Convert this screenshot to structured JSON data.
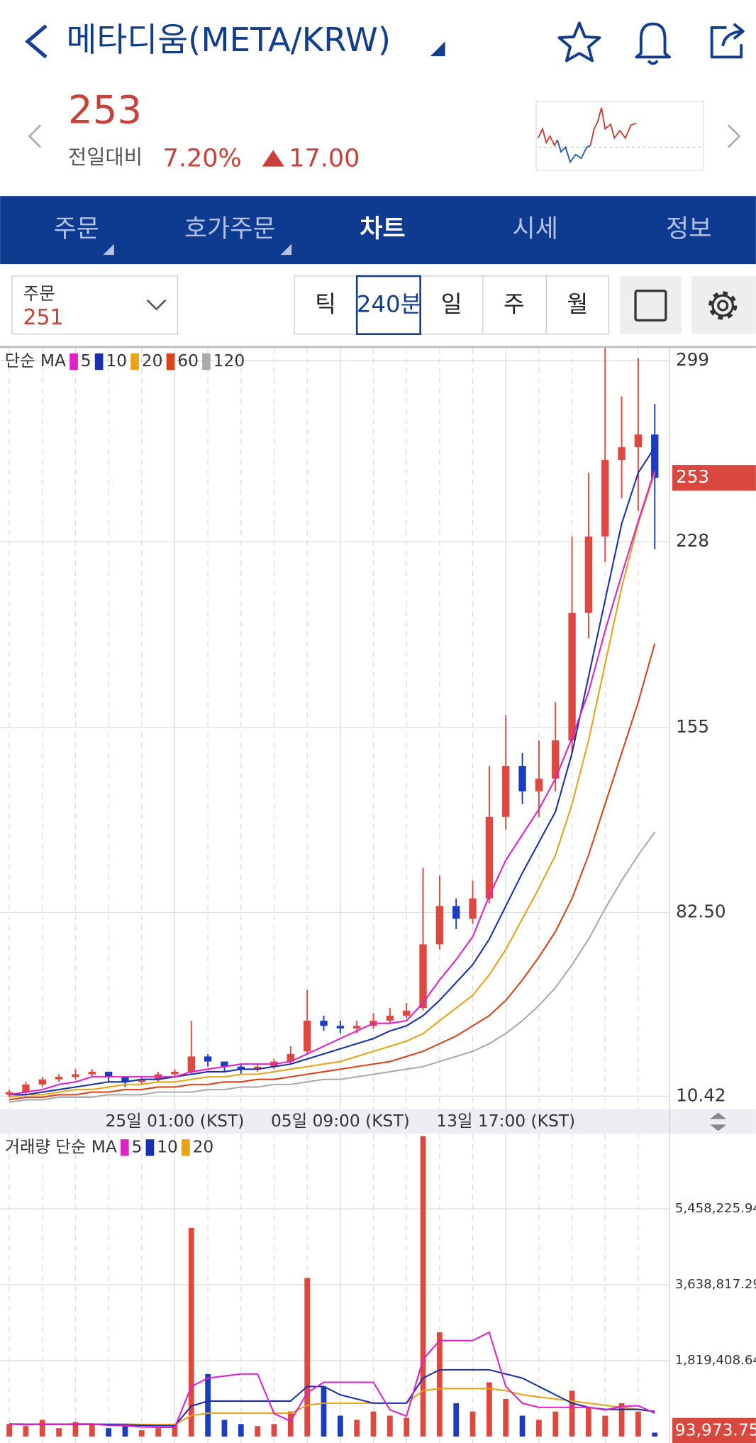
{
  "header": {
    "title": "메타디움(META/KRW)",
    "price": "253",
    "change_label": "전일대비",
    "change_rate": "7.20%",
    "change_amount": "17.00"
  },
  "tabs": [
    "주문",
    "호가주문",
    "차트",
    "시세",
    "정보"
  ],
  "toolbar": {
    "order_label": "주문",
    "order_value": "251",
    "periods": [
      "틱",
      "240분",
      "일",
      "주",
      "월"
    ]
  },
  "chart_data": [
    {
      "type": "candlestick",
      "legend_title": "단순 MA",
      "categories": [
        null,
        null,
        null,
        null,
        null,
        null,
        null,
        null,
        null,
        null,
        "25일 01:00 (KST)",
        null,
        null,
        null,
        null,
        null,
        null,
        null,
        null,
        null,
        "05일 09:00 (KST)",
        null,
        null,
        null,
        null,
        null,
        null,
        null,
        null,
        null,
        "13일 17:00 (KST)",
        null,
        null,
        null,
        null,
        null,
        null,
        null,
        null,
        null
      ],
      "open": [
        11,
        12,
        15,
        17,
        18,
        19,
        20,
        18,
        16,
        17,
        19,
        20,
        26,
        24,
        22,
        21,
        22,
        24,
        28,
        40,
        38,
        37,
        38,
        40,
        42,
        45,
        70,
        85,
        80,
        88,
        120,
        140,
        130,
        135,
        150,
        200,
        230,
        260,
        265,
        270
      ],
      "high": [
        13,
        16,
        18,
        19,
        21,
        21,
        20,
        18,
        18,
        20,
        21,
        40,
        27,
        24,
        23,
        23,
        25,
        30,
        52,
        42,
        40,
        40,
        43,
        45,
        47,
        100,
        97,
        88,
        95,
        140,
        160,
        145,
        150,
        165,
        230,
        255,
        304,
        285,
        300,
        282
      ],
      "low": [
        10,
        11,
        14,
        16,
        17,
        18,
        16,
        14,
        15,
        16,
        18,
        19,
        22,
        20,
        19,
        20,
        21,
        23,
        27,
        36,
        35,
        35,
        37,
        39,
        41,
        44,
        68,
        76,
        78,
        86,
        115,
        125,
        120,
        130,
        145,
        190,
        220,
        245,
        240,
        225
      ],
      "close": [
        12,
        15,
        17,
        18,
        19,
        20,
        18,
        16,
        17,
        19,
        20,
        26,
        24,
        22,
        21,
        22,
        24,
        27,
        40,
        38,
        37,
        38,
        40,
        42,
        44,
        70,
        85,
        80,
        88,
        120,
        140,
        130,
        135,
        150,
        200,
        230,
        260,
        265,
        270,
        253
      ],
      "up_color": "#e0483f",
      "down_color": "#1c3cc4",
      "series": [
        {
          "name": "5",
          "color": "#e020c8",
          "values": [
            11,
            12,
            13,
            15,
            16,
            18,
            18,
            18,
            18,
            18,
            18,
            20,
            21,
            22,
            23,
            23,
            23,
            24,
            27,
            30,
            33,
            36,
            39,
            39,
            40,
            47,
            56,
            64,
            73,
            89,
            103,
            113,
            123,
            135,
            151,
            169,
            193,
            215,
            236,
            256
          ]
        },
        {
          "name": "10",
          "color": "#1a2fb0",
          "values": [
            11,
            11,
            12,
            13,
            14,
            15,
            16,
            16,
            17,
            17,
            18,
            19,
            20,
            20,
            21,
            21,
            22,
            23,
            25,
            27,
            29,
            31,
            33,
            36,
            38,
            42,
            48,
            55,
            62,
            72,
            85,
            98,
            110,
            122,
            145,
            175,
            205,
            235,
            255,
            265
          ]
        },
        {
          "name": "20",
          "color": "#e8a317",
          "values": [
            10,
            11,
            11,
            12,
            13,
            13,
            14,
            15,
            15,
            16,
            16,
            17,
            18,
            18,
            19,
            19,
            20,
            21,
            22,
            23,
            24,
            26,
            28,
            30,
            32,
            35,
            40,
            45,
            50,
            58,
            68,
            80,
            92,
            105,
            125,
            150,
            180,
            210,
            235,
            255
          ]
        },
        {
          "name": "60",
          "color": "#e0401a",
          "values": [
            9,
            10,
            10,
            11,
            11,
            12,
            12,
            13,
            13,
            14,
            14,
            15,
            15,
            16,
            16,
            17,
            17,
            18,
            19,
            20,
            21,
            22,
            23,
            24,
            26,
            28,
            31,
            34,
            38,
            42,
            48,
            56,
            65,
            75,
            88,
            105,
            125,
            145,
            165,
            188
          ]
        },
        {
          "name": "120",
          "color": "#aaaaaa",
          "values": [
            8,
            9,
            9,
            10,
            10,
            10,
            11,
            11,
            11,
            12,
            12,
            12,
            13,
            13,
            14,
            14,
            15,
            15,
            16,
            17,
            17,
            18,
            19,
            20,
            21,
            22,
            24,
            26,
            28,
            31,
            35,
            40,
            46,
            53,
            62,
            72,
            84,
            95,
            105,
            114
          ]
        }
      ],
      "current_price": 253,
      "ylim": [
        5.4,
        304
      ],
      "yticks": [
        299,
        228,
        155,
        {
          "value": 82.5,
          "label": "82.50"
        },
        10.42
      ],
      "grid": true
    },
    {
      "type": "bar",
      "legend_title": "거래량 단순 MA",
      "values": [
        300000,
        250000,
        400000,
        200000,
        350000,
        300000,
        200000,
        250000,
        150000,
        200000,
        300000,
        5000000,
        1500000,
        400000,
        300000,
        250000,
        300000,
        600000,
        3800000,
        1200000,
        500000,
        400000,
        600000,
        500000,
        450000,
        7200000,
        2500000,
        800000,
        600000,
        1300000,
        900000,
        500000,
        400000,
        600000,
        1100000,
        700000,
        500000,
        800000,
        600000,
        93973.75
      ],
      "series": [
        {
          "name": "5",
          "color": "#e020c8",
          "values": [
            300000,
            280000,
            300000,
            290000,
            300000,
            300000,
            270000,
            260000,
            230000,
            220000,
            220000,
            1200000,
            1400000,
            1450000,
            1500000,
            1500000,
            550000,
            370000,
            1050000,
            1300000,
            1300000,
            1300000,
            1300000,
            640000,
            490000,
            1850000,
            2300000,
            2300000,
            2300000,
            2500000,
            1200000,
            800000,
            700000,
            700000,
            700000,
            700000,
            640000,
            720000,
            740000,
            560000
          ]
        },
        {
          "name": "10",
          "color": "#1a2fb0",
          "values": [
            300000,
            290000,
            290000,
            290000,
            290000,
            290000,
            290000,
            280000,
            270000,
            260000,
            260000,
            730000,
            850000,
            850000,
            850000,
            850000,
            850000,
            850000,
            1200000,
            1200000,
            1000000,
            900000,
            800000,
            800000,
            800000,
            1400000,
            1600000,
            1600000,
            1600000,
            1600000,
            1500000,
            1400000,
            1200000,
            1000000,
            800000,
            700000,
            650000,
            650000,
            650000,
            600000
          ]
        },
        {
          "name": "20",
          "color": "#e8a317",
          "values": [
            300000,
            300000,
            300000,
            300000,
            300000,
            300000,
            300000,
            300000,
            290000,
            290000,
            290000,
            500000,
            560000,
            560000,
            560000,
            560000,
            560000,
            560000,
            750000,
            800000,
            800000,
            800000,
            800000,
            800000,
            800000,
            1100000,
            1150000,
            1150000,
            1150000,
            1150000,
            1100000,
            1000000,
            950000,
            900000,
            850000,
            800000,
            750000,
            700000,
            650000,
            600000
          ]
        }
      ],
      "current_value": {
        "value": 93973.75,
        "label": "93,973.75"
      },
      "ylim": [
        0,
        7255000
      ],
      "yticks": [
        {
          "value": 5458225.94,
          "label": "5,458,225.94"
        },
        {
          "value": 3638817.29,
          "label": "3,638,817.29"
        },
        {
          "value": 1819408.64,
          "label": "1,819,408.64"
        }
      ],
      "grid": true
    }
  ]
}
